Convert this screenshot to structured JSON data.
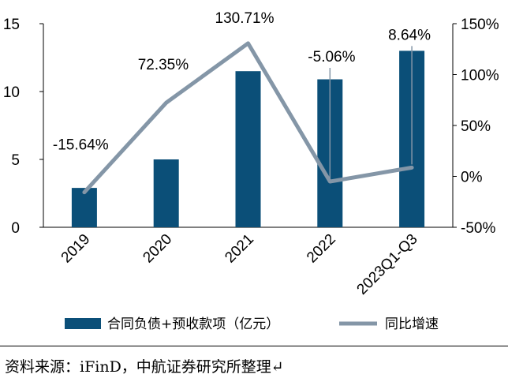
{
  "chart_data": {
    "type": "bar+line",
    "categories": [
      "2019",
      "2020",
      "2021",
      "2022",
      "2023Q1-Q3"
    ],
    "series": [
      {
        "name": "合同负债+预收款项（亿元）",
        "type": "bar",
        "axis": "left",
        "values": [
          2.9,
          5.0,
          11.5,
          10.9,
          13.0
        ],
        "color": "#0b4f78"
      },
      {
        "name": "同比增速",
        "type": "line",
        "axis": "right",
        "values": [
          -15.64,
          72.35,
          130.71,
          -5.06,
          8.64
        ],
        "data_labels": [
          "-15.64%",
          "72.35%",
          "130.71%",
          "-5.06%",
          "8.64%"
        ],
        "color": "#8496a7"
      }
    ],
    "left_axis": {
      "ylim": [
        0,
        15
      ],
      "ticks": [
        0,
        5,
        10,
        15
      ],
      "tick_labels": [
        "0",
        "5",
        "10",
        "15"
      ]
    },
    "right_axis": {
      "ylim": [
        -50,
        150
      ],
      "ticks": [
        -50,
        0,
        50,
        100,
        150
      ],
      "tick_labels": [
        "-50%",
        "0%",
        "50%",
        "100%",
        "150%"
      ]
    },
    "grid": false,
    "legend": "bottom"
  },
  "source_note": "资料来源：iFinD，中航证券研究所整理↵"
}
